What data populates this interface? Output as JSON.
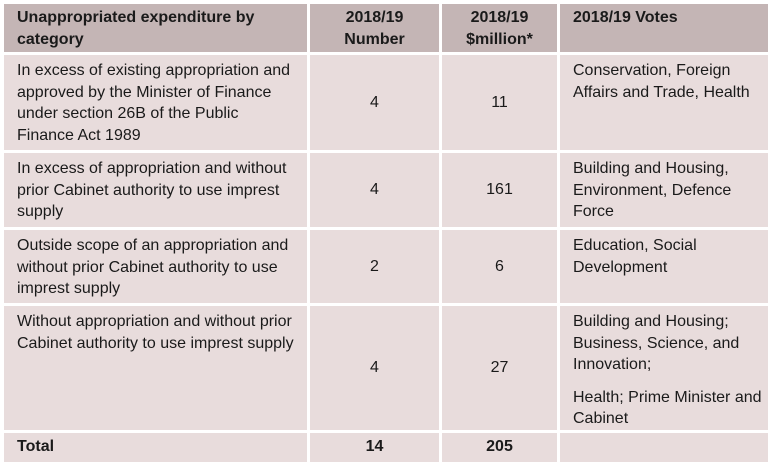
{
  "headers": {
    "category": "Unappropriated expenditure by category",
    "number": "2018/19 Number",
    "million": "2018/19 $million*",
    "votes": "2018/19 Votes"
  },
  "rows": [
    {
      "category": "In excess of existing appropriation and approved by the Minister of Finance under section 26B of the Public Finance Act 1989",
      "number": "4",
      "million": "11",
      "votes": [
        "Conservation, Foreign Affairs and Trade, Health"
      ]
    },
    {
      "category": "In excess of appropriation and without prior Cabinet authority to use imprest supply",
      "number": "4",
      "million": "161",
      "votes": [
        "Building and Housing, Environment, Defence Force"
      ]
    },
    {
      "category": "Outside scope of an appropriation and without prior Cabinet authority to use imprest supply",
      "number": "2",
      "million": "6",
      "votes": [
        "Education, Social Development"
      ]
    },
    {
      "category": "Without appropriation and without prior Cabinet authority to use imprest supply",
      "number": "4",
      "million": "27",
      "votes": [
        "Building and Housing; Business, Science, and Innovation;",
        "Health; Prime Minister and Cabinet"
      ]
    }
  ],
  "total": {
    "label": "Total",
    "number": "14",
    "million": "205",
    "votes": ""
  },
  "colors": {
    "header_bg": "#c4b5b5",
    "cell_bg": "#e8dcdc",
    "text": "#1a1a1a"
  }
}
